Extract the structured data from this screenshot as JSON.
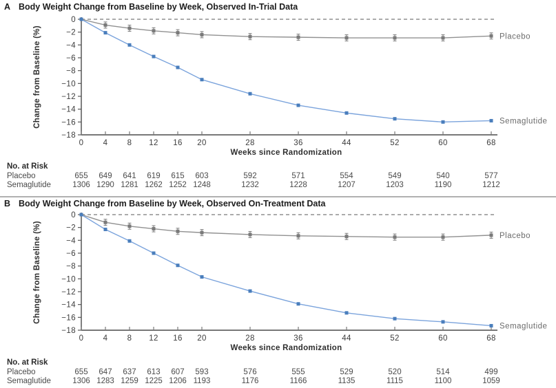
{
  "figure": {
    "panels": [
      {
        "label": "A",
        "title": "Body Weight Change from Baseline by Week, Observed In-Trial Data",
        "risk_table": {
          "header": "No. at Risk",
          "rows": [
            {
              "label": "Placebo",
              "values": [
                655,
                649,
                641,
                619,
                615,
                603,
                592,
                571,
                554,
                549,
                540,
                577
              ]
            },
            {
              "label": "Semaglutide",
              "values": [
                1306,
                1290,
                1281,
                1262,
                1252,
                1248,
                1232,
                1228,
                1207,
                1203,
                1190,
                1212
              ]
            }
          ]
        }
      },
      {
        "label": "B",
        "title": "Body Weight Change from Baseline by Week, Observed On-Treatment Data",
        "risk_table": {
          "header": "No. at Risk",
          "rows": [
            {
              "label": "Placebo",
              "values": [
                655,
                647,
                637,
                613,
                607,
                593,
                576,
                555,
                529,
                520,
                514,
                499
              ]
            },
            {
              "label": "Semaglutide",
              "values": [
                1306,
                1283,
                1259,
                1225,
                1206,
                1193,
                1176,
                1166,
                1135,
                1115,
                1100,
                1059
              ]
            }
          ]
        }
      }
    ]
  },
  "chart_data": [
    {
      "panel": "A",
      "type": "line",
      "title": "Body Weight Change from Baseline by Week, Observed In-Trial Data",
      "x": [
        0,
        4,
        8,
        12,
        16,
        20,
        28,
        36,
        44,
        52,
        60,
        68
      ],
      "xlabel": "Weeks since Randomization",
      "ylabel": "Change from Baseline (%)",
      "ylim": [
        -18,
        0
      ],
      "yticks": [
        0,
        -2,
        -4,
        -6,
        -8,
        -10,
        -12,
        -14,
        -16,
        -18
      ],
      "zero_reference_line": true,
      "legend_position": "right-of-line-end",
      "grid": false,
      "series": [
        {
          "name": "Placebo",
          "color": "#909090",
          "marker_color": "#7a7a7a",
          "error_bars": true,
          "values": [
            0,
            -0.9,
            -1.4,
            -1.8,
            -2.1,
            -2.4,
            -2.7,
            -2.8,
            -2.9,
            -2.9,
            -2.9,
            -2.6
          ]
        },
        {
          "name": "Semaglutide",
          "color": "#7aa3dc",
          "marker_color": "#4a7ebc",
          "error_bars": false,
          "values": [
            0,
            -2.1,
            -4.0,
            -5.8,
            -7.5,
            -9.4,
            -11.6,
            -13.4,
            -14.6,
            -15.5,
            -16.0,
            -15.8
          ]
        }
      ]
    },
    {
      "panel": "B",
      "type": "line",
      "title": "Body Weight Change from Baseline by Week, Observed On-Treatment Data",
      "x": [
        0,
        4,
        8,
        12,
        16,
        20,
        28,
        36,
        44,
        52,
        60,
        68
      ],
      "xlabel": "Weeks since Randomization",
      "ylabel": "Change from Baseline (%)",
      "ylim": [
        -18,
        0
      ],
      "yticks": [
        0,
        -2,
        -4,
        -6,
        -8,
        -10,
        -12,
        -14,
        -16,
        -18
      ],
      "zero_reference_line": true,
      "legend_position": "right-of-line-end",
      "grid": false,
      "series": [
        {
          "name": "Placebo",
          "color": "#909090",
          "marker_color": "#7a7a7a",
          "error_bars": true,
          "values": [
            0,
            -1.2,
            -1.8,
            -2.2,
            -2.6,
            -2.8,
            -3.1,
            -3.3,
            -3.4,
            -3.5,
            -3.5,
            -3.2
          ]
        },
        {
          "name": "Semaglutide",
          "color": "#7aa3dc",
          "marker_color": "#4a7ebc",
          "error_bars": false,
          "values": [
            0,
            -2.3,
            -4.1,
            -6.0,
            -7.9,
            -9.7,
            -11.9,
            -13.9,
            -15.3,
            -16.2,
            -16.7,
            -17.3
          ]
        }
      ]
    }
  ]
}
